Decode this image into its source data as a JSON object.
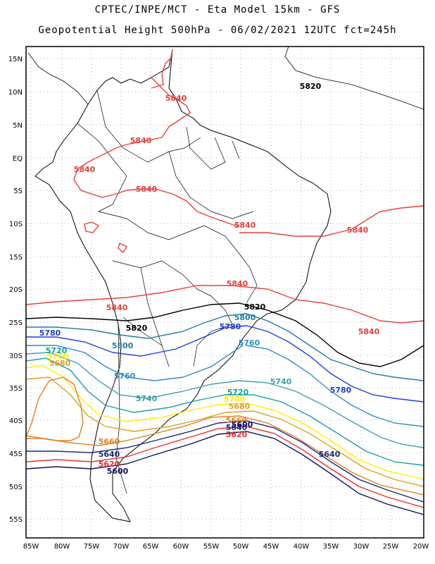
{
  "header": {
    "line1": "CPTEC/INPE/MCT -  Eta Model 15km - GFS",
    "line2": "Geopotential Height 500hPa - 06/02/2021 12UTC fct=245h"
  },
  "axes": {
    "lat_labels": [
      "15N",
      "10N",
      "5N",
      "EQ",
      "5S",
      "10S",
      "15S",
      "20S",
      "25S",
      "30S",
      "35S",
      "40S",
      "45S",
      "50S",
      "55S"
    ],
    "lon_labels": [
      "85W",
      "80W",
      "75W",
      "70W",
      "65W",
      "60W",
      "55W",
      "50W",
      "45W",
      "40W",
      "35W",
      "30W",
      "25W",
      "20W"
    ],
    "grid": "dotted"
  },
  "colors": {
    "5840": "#e8403c",
    "5820": "#000000",
    "5800": "#1f7ea0",
    "5780": "#1e3fe0",
    "5760": "#2c8fc0",
    "5740": "#3fa0b0",
    "5720": "#1aa0a0",
    "5700": "#ffee00",
    "5680": "#dda020",
    "5660": "#e08020",
    "5640": "#1a2a7a",
    "5620": "#e83030",
    "5600": "#101060"
  },
  "contour_labels": [
    {
      "text": "5820",
      "level": "5820"
    },
    {
      "text": "5840",
      "level": "5840"
    },
    {
      "text": "5840",
      "level": "5840"
    },
    {
      "text": "5840",
      "level": "5840"
    },
    {
      "text": "5840",
      "level": "5840"
    },
    {
      "text": "5840",
      "level": "5840"
    },
    {
      "text": "5840",
      "level": "5840"
    },
    {
      "text": "5840",
      "level": "5840"
    },
    {
      "text": "5840",
      "level": "5840"
    },
    {
      "text": "5820",
      "level": "5820"
    },
    {
      "text": "5800",
      "level": "5800"
    },
    {
      "text": "5780",
      "level": "5780"
    },
    {
      "text": "5760",
      "level": "5760"
    },
    {
      "text": "5840",
      "level": "5840"
    },
    {
      "text": "5780",
      "level": "5780"
    },
    {
      "text": "5820",
      "level": "5820"
    },
    {
      "text": "5800",
      "level": "5800"
    },
    {
      "text": "5720",
      "level": "5720"
    },
    {
      "text": "5700",
      "level": "5700"
    },
    {
      "text": "5680",
      "level": "5680"
    },
    {
      "text": "5760",
      "level": "5760"
    },
    {
      "text": "5740",
      "level": "5740"
    },
    {
      "text": "5740",
      "level": "5740"
    },
    {
      "text": "5780",
      "level": "5780"
    },
    {
      "text": "5720",
      "level": "5720"
    },
    {
      "text": "5700",
      "level": "5700"
    },
    {
      "text": "5680",
      "level": "5680"
    },
    {
      "text": "5660",
      "level": "5660"
    },
    {
      "text": "5640",
      "level": "5640"
    },
    {
      "text": "5620",
      "level": "5620"
    },
    {
      "text": "5600",
      "level": "5600"
    },
    {
      "text": "5660",
      "level": "5660"
    },
    {
      "text": "5640",
      "level": "5640"
    },
    {
      "text": "5620",
      "level": "5620"
    },
    {
      "text": "5600",
      "level": "5600"
    },
    {
      "text": "5640",
      "level": "5640"
    }
  ]
}
